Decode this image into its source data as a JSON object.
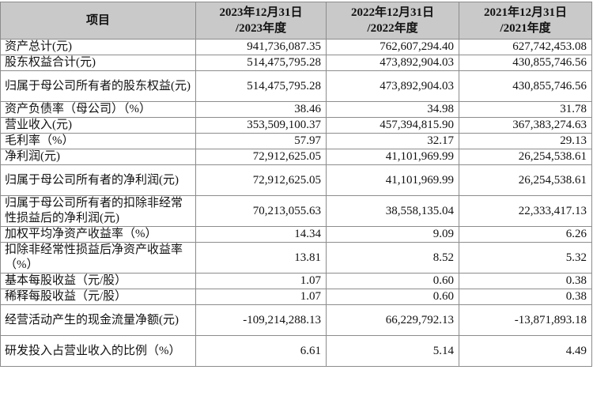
{
  "table": {
    "headers": [
      "项目",
      "2023年12月31日/2023年度",
      "2022年12月31日/2022年度",
      "2021年12月31日/2021年度"
    ],
    "header_lines": [
      [
        "项目"
      ],
      [
        "2023年12月31日",
        "/2023年度"
      ],
      [
        "2022年12月31日",
        "/2022年度"
      ],
      [
        "2021年12月31日",
        "/2021年度"
      ]
    ],
    "rows": [
      {
        "label": "资产总计(元)",
        "values": [
          "941,736,087.35",
          "762,607,294.40",
          "627,742,453.08"
        ],
        "lines": 1
      },
      {
        "label": "股东权益合计(元)",
        "values": [
          "514,475,795.28",
          "473,892,904.03",
          "430,855,746.56"
        ],
        "lines": 1
      },
      {
        "label": "归属于母公司所有者的股东权益(元)",
        "values": [
          "514,475,795.28",
          "473,892,904.03",
          "430,855,746.56"
        ],
        "lines": 2
      },
      {
        "label": "资产负债率（母公司）（%）",
        "values": [
          "38.46",
          "34.98",
          "31.78"
        ],
        "lines": 1
      },
      {
        "label": "营业收入(元)",
        "values": [
          "353,509,100.37",
          "457,394,815.90",
          "367,383,274.63"
        ],
        "lines": 1
      },
      {
        "label": "毛利率（%）",
        "values": [
          "57.97",
          "32.17",
          "29.13"
        ],
        "lines": 1
      },
      {
        "label": "净利润(元)",
        "values": [
          "72,912,625.05",
          "41,101,969.99",
          "26,254,538.61"
        ],
        "lines": 1
      },
      {
        "label": "归属于母公司所有者的净利润(元)",
        "values": [
          "72,912,625.05",
          "41,101,969.99",
          "26,254,538.61"
        ],
        "lines": 2
      },
      {
        "label": "归属于母公司所有者的扣除非经常性损益后的净利润(元)",
        "values": [
          "70,213,055.63",
          "38,558,135.04",
          "22,333,417.13"
        ],
        "lines": 2
      },
      {
        "label": "加权平均净资产收益率（%）",
        "values": [
          "14.34",
          "9.09",
          "6.26"
        ],
        "lines": 1
      },
      {
        "label": "扣除非经常性损益后净资产收益率（%）",
        "values": [
          "13.81",
          "8.52",
          "5.32"
        ],
        "lines": 2
      },
      {
        "label": "基本每股收益（元/股）",
        "values": [
          "1.07",
          "0.60",
          "0.38"
        ],
        "lines": 1
      },
      {
        "label": "稀释每股收益（元/股）",
        "values": [
          "1.07",
          "0.60",
          "0.38"
        ],
        "lines": 1
      },
      {
        "label": "经营活动产生的现金流量净额(元)",
        "values": [
          "-109,214,288.13",
          "66,229,792.13",
          "-13,871,893.18"
        ],
        "lines": 2
      },
      {
        "label": "研发投入占营业收入的比例（%）",
        "values": [
          "6.61",
          "5.14",
          "4.49"
        ],
        "lines": 2
      }
    ]
  }
}
